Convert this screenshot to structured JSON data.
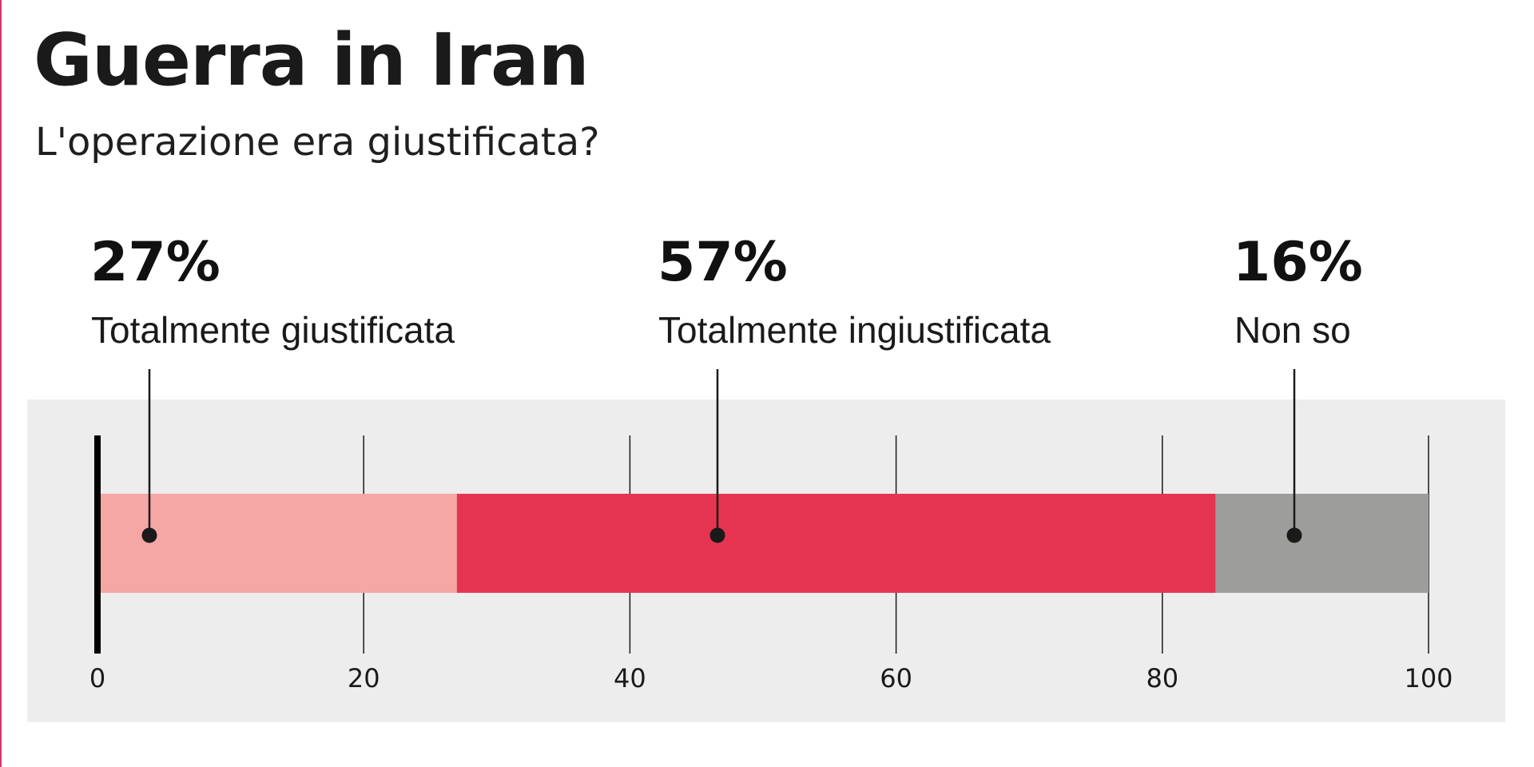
{
  "title": "Guerra in Iran",
  "subtitle": "L'operazione era giustificata?",
  "colors": {
    "accent_edge": "#d6336c"
  },
  "chart_data": {
    "type": "bar",
    "orientation": "horizontal-stacked",
    "xlim": [
      0,
      100
    ],
    "ticks": [
      "0",
      "20",
      "40",
      "60",
      "80",
      "100"
    ],
    "grid": true,
    "series": [
      {
        "name": "Totalmente giustificata",
        "value": 27,
        "label": "27%",
        "color": "#f4a7a4"
      },
      {
        "name": "Totalmente ingiustificata",
        "value": 57,
        "label": "57%",
        "color": "#e63552"
      },
      {
        "name": "Non so",
        "value": 16,
        "label": "16%",
        "color": "#9d9d9c"
      }
    ]
  }
}
